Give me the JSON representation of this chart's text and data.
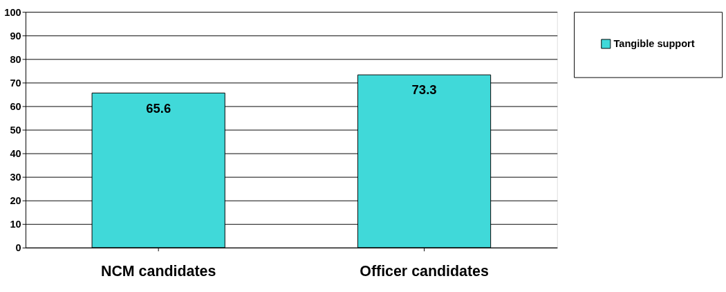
{
  "chart_data": {
    "type": "bar",
    "categories": [
      "NCM candidates",
      "Officer candidates"
    ],
    "series": [
      {
        "name": "Tangible support",
        "color": "#40d9d9",
        "values": [
          65.6,
          73.3
        ]
      }
    ],
    "ylim": [
      0,
      100
    ],
    "yticks": [
      0,
      10,
      20,
      30,
      40,
      50,
      60,
      70,
      80,
      90,
      100
    ],
    "grid": "y",
    "legend": "right",
    "data_labels": true
  }
}
